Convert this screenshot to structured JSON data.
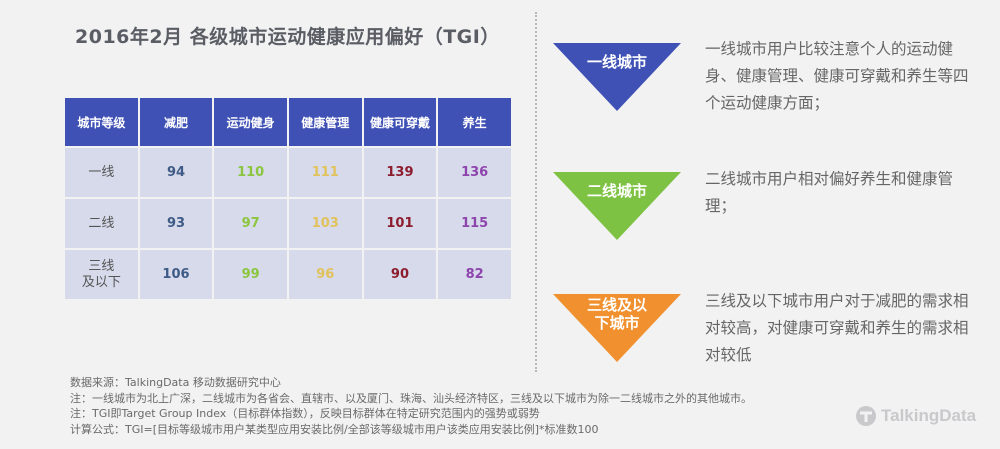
{
  "title": "2016年2月  各级城市运动健康应用偏好（TGI）",
  "table": {
    "headers": [
      "城市等级",
      "减肥",
      "运动健身",
      "健康管理",
      "健康可穿戴",
      "养生"
    ],
    "rows": [
      {
        "tier": "一线",
        "values": [
          "94",
          "110",
          "111",
          "139",
          "136"
        ]
      },
      {
        "tier": "二线",
        "values": [
          "93",
          "97",
          "103",
          "101",
          "115"
        ]
      },
      {
        "tier_line1": "三线",
        "tier_line2": "及以下",
        "values": [
          "106",
          "99",
          "96",
          "90",
          "82"
        ]
      }
    ],
    "column_colors": [
      "#3e5a86",
      "#8cc63f",
      "#e2c25a",
      "#8c1d2e",
      "#8e44ad"
    ]
  },
  "notes": {
    "source": "数据来源：TalkingData 移动数据研究中心",
    "note1": "注：一线城市为北上广深，二线城市为各省会、直辖市、以及厦门、珠海、汕头经济特区，三线及以下城市为除一二线城市之外的其他城市。",
    "note2": "注：TGI即Target Group Index（目标群体指数），反映目标群体在特定研究范围内的强势或弱势",
    "formula": "计算公式：TGI=[目标等级城市用户某类型应用安装比例/全部该等级城市用户该类应用安装比例]*标准数100"
  },
  "insights": [
    {
      "label": "一线城市",
      "color": "#3f51b5",
      "text": "一线城市用户比较注意个人的运动健身、健康管理、健康可穿戴和养生等四个运动健康方面；"
    },
    {
      "label": "二线城市",
      "color": "#7dc242",
      "text": "二线城市用户相对偏好养生和健康管理；"
    },
    {
      "label_line1": "三线及以",
      "label_line2": "下城市",
      "color": "#f0902e",
      "text": "三线及以下城市用户对于减肥的需求相对较高，对健康可穿戴和养生的需求相对较低"
    }
  ],
  "logo": {
    "text": "TalkingData",
    "icon": "talkingdata-logo-icon"
  }
}
